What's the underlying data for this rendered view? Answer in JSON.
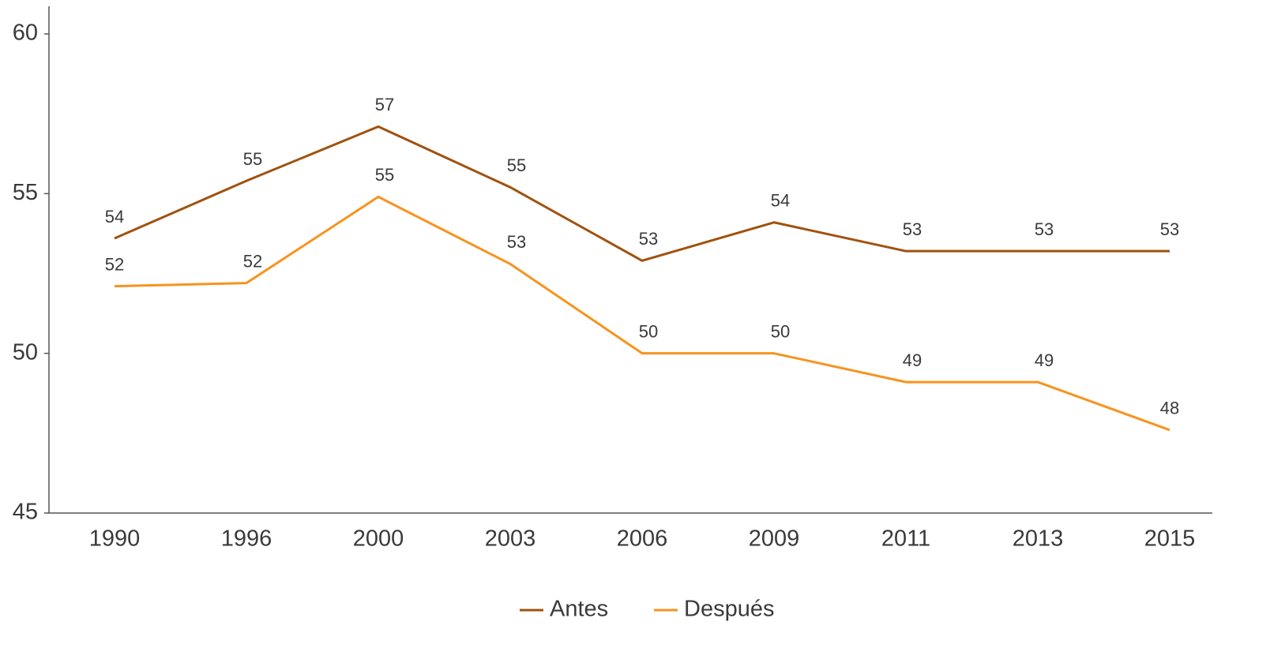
{
  "chart_data": {
    "type": "line",
    "categories": [
      "1990",
      "1996",
      "2000",
      "2003",
      "2006",
      "2009",
      "2011",
      "2013",
      "2015"
    ],
    "series": [
      {
        "name": "Antes",
        "color": "#a0520e",
        "values": [
          53.6,
          55.4,
          57.1,
          55.2,
          52.9,
          54.1,
          53.2,
          53.2,
          53.2
        ],
        "value_labels": [
          "54",
          "55",
          "57",
          "55",
          "53",
          "54",
          "53",
          "53",
          "53"
        ]
      },
      {
        "name": "Después",
        "color": "#f7931e",
        "values": [
          52.1,
          52.2,
          54.9,
          52.8,
          50.0,
          50.0,
          49.1,
          49.1,
          47.6
        ],
        "value_labels": [
          "52",
          "52",
          "55",
          "53",
          "50",
          "50",
          "49",
          "49",
          "48"
        ]
      }
    ],
    "ylim": [
      45,
      60
    ],
    "yticks": [
      45,
      50,
      55,
      60
    ],
    "grid": false,
    "legend": "bottom"
  }
}
